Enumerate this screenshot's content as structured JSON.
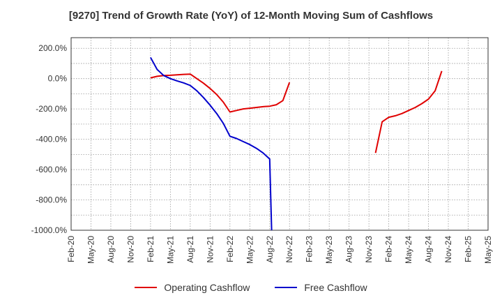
{
  "chart_data": {
    "type": "line",
    "title": "[9270]  Trend of Growth Rate (YoY) of 12-Month Moving Sum of Cashflows",
    "xlabel": "",
    "ylabel": "",
    "x_ticks": [
      "Feb-20",
      "May-20",
      "Aug-20",
      "Nov-20",
      "Feb-21",
      "May-21",
      "Aug-21",
      "Nov-21",
      "Feb-22",
      "May-22",
      "Aug-22",
      "Nov-22",
      "Feb-23",
      "May-23",
      "Aug-23",
      "Nov-23",
      "Feb-24",
      "May-24",
      "Aug-24",
      "Nov-24",
      "Feb-25",
      "May-25"
    ],
    "y_ticks": [
      "200.0%",
      "0.0%",
      "-200.0%",
      "-400.0%",
      "-600.0%",
      "-800.0%",
      "-1000.0%"
    ],
    "ylim": [
      -1000,
      270
    ],
    "grid": true,
    "legend_position": "bottom",
    "series": [
      {
        "name": "Operating Cashflow",
        "color": "#e00000",
        "points": [
          [
            "Feb-21",
            5
          ],
          [
            "Mar-21",
            15
          ],
          [
            "Apr-21",
            20
          ],
          [
            "May-21",
            22
          ],
          [
            "Jun-21",
            25
          ],
          [
            "Jul-21",
            28
          ],
          [
            "Aug-21",
            30
          ],
          [
            "Sep-21",
            0
          ],
          [
            "Oct-21",
            -30
          ],
          [
            "Nov-21",
            -65
          ],
          [
            "Dec-21",
            -105
          ],
          [
            "Jan-22",
            -155
          ],
          [
            "Feb-22",
            -220
          ],
          [
            "Mar-22",
            -210
          ],
          [
            "Apr-22",
            -200
          ],
          [
            "May-22",
            -195
          ],
          [
            "Jun-22",
            -190
          ],
          [
            "Jul-22",
            -185
          ],
          [
            "Aug-22",
            -182
          ],
          [
            "Sep-22",
            -172
          ],
          [
            "Oct-22",
            -145
          ],
          [
            "Nov-22",
            -25
          ]
        ]
      },
      {
        "name": "Operating Cashflow",
        "color": "#e00000",
        "points": [
          [
            "Dec-23",
            -490
          ],
          [
            "Jan-24",
            -285
          ],
          [
            "Feb-24",
            -255
          ],
          [
            "Mar-24",
            -245
          ],
          [
            "Apr-24",
            -230
          ],
          [
            "May-24",
            -210
          ],
          [
            "Jun-24",
            -190
          ],
          [
            "Jul-24",
            -165
          ],
          [
            "Aug-24",
            -135
          ],
          [
            "Sep-24",
            -80
          ],
          [
            "Oct-24",
            50
          ]
        ]
      },
      {
        "name": "Free Cashflow",
        "color": "#0000cc",
        "points": [
          [
            "Feb-21",
            140
          ],
          [
            "Mar-21",
            60
          ],
          [
            "Apr-21",
            20
          ],
          [
            "May-21",
            0
          ],
          [
            "Jun-21",
            -15
          ],
          [
            "Jul-21",
            -28
          ],
          [
            "Aug-21",
            -45
          ],
          [
            "Sep-21",
            -80
          ],
          [
            "Oct-21",
            -125
          ],
          [
            "Nov-21",
            -175
          ],
          [
            "Dec-21",
            -230
          ],
          [
            "Jan-22",
            -295
          ],
          [
            "Feb-22",
            -380
          ],
          [
            "Mar-22",
            -395
          ],
          [
            "Apr-22",
            -415
          ],
          [
            "May-22",
            -435
          ],
          [
            "Jun-22",
            -460
          ],
          [
            "Jul-22",
            -490
          ],
          [
            "Aug-22",
            -530
          ],
          [
            "Aug-22+",
            -1000
          ]
        ]
      }
    ],
    "legend": [
      {
        "label": "Operating Cashflow",
        "color": "#e00000"
      },
      {
        "label": "Free Cashflow",
        "color": "#0000cc"
      }
    ]
  }
}
